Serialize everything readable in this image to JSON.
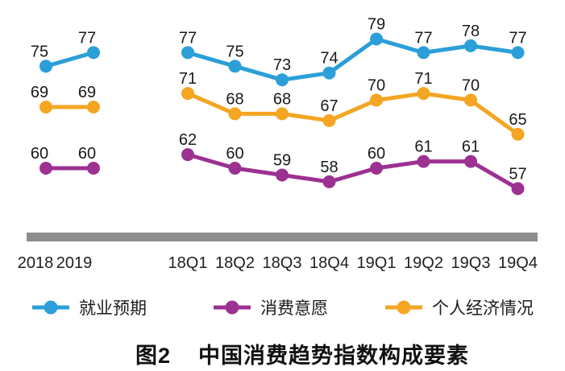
{
  "chart_data": {
    "type": "line",
    "figure_label": "图2",
    "title": "中国消费趋势指数构成要素",
    "categories_annual": [
      "2018",
      "2019"
    ],
    "categories_quarterly": [
      "18Q1",
      "18Q2",
      "18Q3",
      "18Q4",
      "19Q1",
      "19Q2",
      "19Q3",
      "19Q4"
    ],
    "series": [
      {
        "name": "就业预期",
        "color": "#2B9FD8",
        "annual": [
          75,
          77
        ],
        "quarterly": [
          77,
          75,
          73,
          74,
          79,
          77,
          78,
          77
        ]
      },
      {
        "name": "消费意愿",
        "color": "#9C3192",
        "annual": [
          60,
          60
        ],
        "quarterly": [
          62,
          60,
          59,
          58,
          60,
          61,
          61,
          57
        ]
      },
      {
        "name": "个人经济情况",
        "color": "#F4A522",
        "annual": [
          69,
          69
        ],
        "quarterly": [
          71,
          68,
          68,
          67,
          70,
          71,
          70,
          65
        ]
      }
    ],
    "value_labels": true,
    "value_label_color": "#1A1A1A",
    "axis_label_color": "#202020",
    "axis_bar_color": "#8D8D8D",
    "legend_position": "bottom",
    "gridlines": false,
    "y_axis_shown": false
  }
}
